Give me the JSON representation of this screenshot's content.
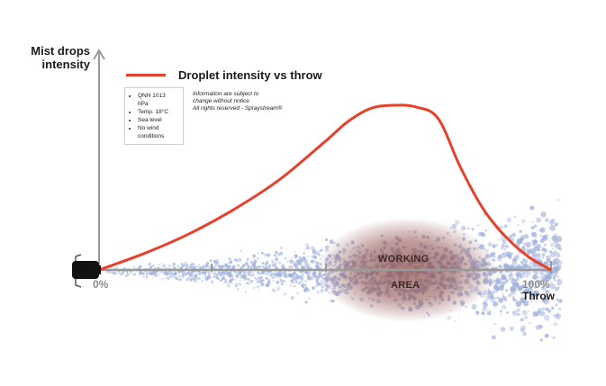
{
  "chart_data": {
    "type": "area",
    "title": "",
    "ylabel": "Mist drops intensity",
    "xlabel": "Throw",
    "x_tick_labels": [
      "0%",
      "100%"
    ],
    "xlim": [
      0,
      100
    ],
    "ylim": [
      0,
      100
    ],
    "grid": false,
    "legend_position": "top-left",
    "series": [
      {
        "name": "Droplet intensity vs throw",
        "color": "#e8402a",
        "x": [
          0,
          10,
          20,
          30,
          40,
          50,
          55,
          60,
          65,
          70,
          75,
          80,
          85,
          90,
          95,
          100
        ],
        "y": [
          0,
          10,
          22,
          37,
          55,
          78,
          90,
          98,
          100,
          99,
          92,
          62,
          37,
          20,
          8,
          0
        ]
      }
    ],
    "zones": [
      {
        "label_line1": "WORKING",
        "label_line2": "AREA",
        "x_range": [
          52,
          92
        ],
        "color": "#8b4a46"
      }
    ],
    "conditions": [
      "QNH 1013 hPa",
      "Temp. 18°C",
      "Sea level",
      "No wind conditions"
    ],
    "notice": [
      "Information are subject to",
      "change without notice",
      "All rights reserved - Spraystream®"
    ],
    "colors": {
      "axis": "#9a9a9a",
      "droplets": "#9fb0da",
      "curve": "#e8402a"
    }
  }
}
